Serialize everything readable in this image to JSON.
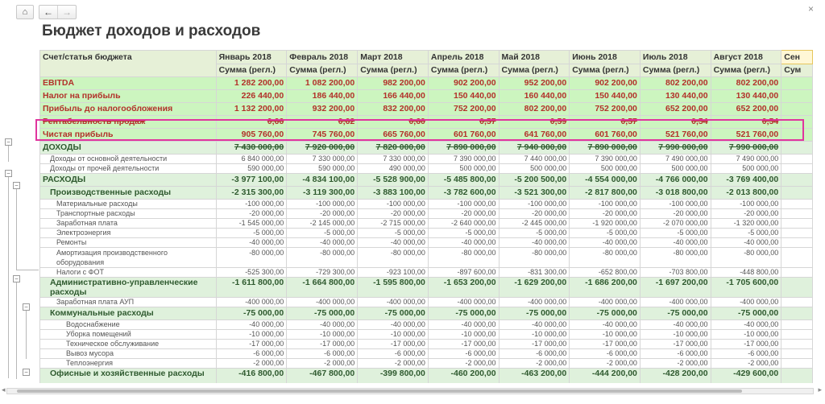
{
  "toolbar": {
    "home_icon": "home-icon",
    "back_icon": "arrow-left-icon",
    "forward_icon": "arrow-right-icon"
  },
  "window": {
    "close": "×"
  },
  "page": {
    "title": "Бюджет доходов и расходов"
  },
  "table": {
    "col_header": "Счет/статья бюджета",
    "months": [
      "Январь 2018",
      "Февраль 2018",
      "Март 2018",
      "Апрель 2018",
      "Май 2018",
      "Июнь 2018",
      "Июль 2018",
      "Август 2018",
      "Сен"
    ],
    "sub_header": "Сумма (регл.)",
    "sub_header_cut": "Сум",
    "rows": [
      {
        "name": "EBITDA",
        "values": [
          "1 282 200,00",
          "1 082 200,00",
          "982 200,00",
          "902 200,00",
          "952 200,00",
          "902 200,00",
          "802 200,00",
          "802 200,00",
          ""
        ]
      },
      {
        "name": "Налог на прибыль",
        "values": [
          "226 440,00",
          "186 440,00",
          "166 440,00",
          "150 440,00",
          "160 440,00",
          "150 440,00",
          "130 440,00",
          "130 440,00",
          ""
        ]
      },
      {
        "name": "Прибыль до налогообложения",
        "values": [
          "1 132 200,00",
          "932 200,00",
          "832 200,00",
          "752 200,00",
          "802 200,00",
          "752 200,00",
          "652 200,00",
          "652 200,00",
          ""
        ]
      },
      {
        "name": "Рентабельность продаж",
        "values": [
          "0,66",
          "0,62",
          "0,60",
          "0,57",
          "0,59",
          "0,57",
          "0,54",
          "0,54",
          ""
        ]
      },
      {
        "name": "Чистая прибыль",
        "values": [
          "905 760,00",
          "745 760,00",
          "665 760,00",
          "601 760,00",
          "641 760,00",
          "601 760,00",
          "521 760,00",
          "521 760,00",
          ""
        ]
      },
      {
        "name": "ДОХОДЫ",
        "values": [
          "7 430 000,00",
          "7 920 000,00",
          "7 820 000,00",
          "7 890 000,00",
          "7 940 000,00",
          "7 890 000,00",
          "7 990 000,00",
          "7 990 000,00",
          ""
        ]
      },
      {
        "name": "Доходы от основной деятельности",
        "values": [
          "6 840 000,00",
          "7 330 000,00",
          "7 330 000,00",
          "7 390 000,00",
          "7 440 000,00",
          "7 390 000,00",
          "7 490 000,00",
          "7 490 000,00",
          ""
        ]
      },
      {
        "name": "Доходы от прочей деятельности",
        "values": [
          "590 000,00",
          "590 000,00",
          "490 000,00",
          "500 000,00",
          "500 000,00",
          "500 000,00",
          "500 000,00",
          "500 000,00",
          ""
        ]
      },
      {
        "name": "РАСХОДЫ",
        "values": [
          "-3 977 100,00",
          "-4 834 100,00",
          "-5 528 900,00",
          "-5 485 800,00",
          "-5 200 500,00",
          "-4 554 000,00",
          "-4 766 000,00",
          "-3 769 400,00",
          ""
        ]
      },
      {
        "name": "Производственные расходы",
        "values": [
          "-2 315 300,00",
          "-3 119 300,00",
          "-3 883 100,00",
          "-3 782 600,00",
          "-3 521 300,00",
          "-2 817 800,00",
          "-3 018 800,00",
          "-2 013 800,00",
          ""
        ]
      },
      {
        "name": "Материальные расходы",
        "values": [
          "-100 000,00",
          "-100 000,00",
          "-100 000,00",
          "-100 000,00",
          "-100 000,00",
          "-100 000,00",
          "-100 000,00",
          "-100 000,00",
          ""
        ]
      },
      {
        "name": "Транспортные расходы",
        "values": [
          "-20 000,00",
          "-20 000,00",
          "-20 000,00",
          "-20 000,00",
          "-20 000,00",
          "-20 000,00",
          "-20 000,00",
          "-20 000,00",
          ""
        ]
      },
      {
        "name": "Заработная плата",
        "values": [
          "-1 545 000,00",
          "-2 145 000,00",
          "-2 715 000,00",
          "-2 640 000,00",
          "-2 445 000,00",
          "-1 920 000,00",
          "-2 070 000,00",
          "-1 320 000,00",
          ""
        ]
      },
      {
        "name": "Электроэнергия",
        "values": [
          "-5 000,00",
          "-5 000,00",
          "-5 000,00",
          "-5 000,00",
          "-5 000,00",
          "-5 000,00",
          "-5 000,00",
          "-5 000,00",
          ""
        ]
      },
      {
        "name": "Ремонты",
        "values": [
          "-40 000,00",
          "-40 000,00",
          "-40 000,00",
          "-40 000,00",
          "-40 000,00",
          "-40 000,00",
          "-40 000,00",
          "-40 000,00",
          ""
        ]
      },
      {
        "name": "Амортизация производственного оборудования",
        "values": [
          "-80 000,00",
          "-80 000,00",
          "-80 000,00",
          "-80 000,00",
          "-80 000,00",
          "-80 000,00",
          "-80 000,00",
          "-80 000,00",
          ""
        ]
      },
      {
        "name": "Налоги с ФОТ",
        "values": [
          "-525 300,00",
          "-729 300,00",
          "-923 100,00",
          "-897 600,00",
          "-831 300,00",
          "-652 800,00",
          "-703 800,00",
          "-448 800,00",
          ""
        ]
      },
      {
        "name": "Административно-управленческие расходы",
        "values": [
          "-1 611 800,00",
          "-1 664 800,00",
          "-1 595 800,00",
          "-1 653 200,00",
          "-1 629 200,00",
          "-1 686 200,00",
          "-1 697 200,00",
          "-1 705 600,00",
          ""
        ]
      },
      {
        "name": "Заработная плата АУП",
        "values": [
          "-400 000,00",
          "-400 000,00",
          "-400 000,00",
          "-400 000,00",
          "-400 000,00",
          "-400 000,00",
          "-400 000,00",
          "-400 000,00",
          ""
        ]
      },
      {
        "name": "Коммунальные расходы",
        "values": [
          "-75 000,00",
          "-75 000,00",
          "-75 000,00",
          "-75 000,00",
          "-75 000,00",
          "-75 000,00",
          "-75 000,00",
          "-75 000,00",
          ""
        ]
      },
      {
        "name": "Водоснабжение",
        "values": [
          "-40 000,00",
          "-40 000,00",
          "-40 000,00",
          "-40 000,00",
          "-40 000,00",
          "-40 000,00",
          "-40 000,00",
          "-40 000,00",
          ""
        ]
      },
      {
        "name": "Уборка помещений",
        "values": [
          "-10 000,00",
          "-10 000,00",
          "-10 000,00",
          "-10 000,00",
          "-10 000,00",
          "-10 000,00",
          "-10 000,00",
          "-10 000,00",
          ""
        ]
      },
      {
        "name": "Техническое обслуживание",
        "values": [
          "-17 000,00",
          "-17 000,00",
          "-17 000,00",
          "-17 000,00",
          "-17 000,00",
          "-17 000,00",
          "-17 000,00",
          "-17 000,00",
          ""
        ]
      },
      {
        "name": "Вывоз мусора",
        "values": [
          "-6 000,00",
          "-6 000,00",
          "-6 000,00",
          "-6 000,00",
          "-6 000,00",
          "-6 000,00",
          "-6 000,00",
          "-6 000,00",
          ""
        ]
      },
      {
        "name": "Теплоэнергия",
        "values": [
          "-2 000,00",
          "-2 000,00",
          "-2 000,00",
          "-2 000,00",
          "-2 000,00",
          "-2 000,00",
          "-2 000,00",
          "-2 000,00",
          ""
        ]
      },
      {
        "name": "Офисные и хозяйственные расходы",
        "values": [
          "-416 800,00",
          "-467 800,00",
          "-399 800,00",
          "-460 200,00",
          "-463 200,00",
          "-444 200,00",
          "-428 200,00",
          "-429 600,00",
          ""
        ]
      }
    ]
  },
  "colors": {
    "kpi_text": "#b2312a",
    "kpi_bg": "#ccf5bf",
    "header_bg": "#e6f0d7",
    "highlight": "#e0359e"
  }
}
